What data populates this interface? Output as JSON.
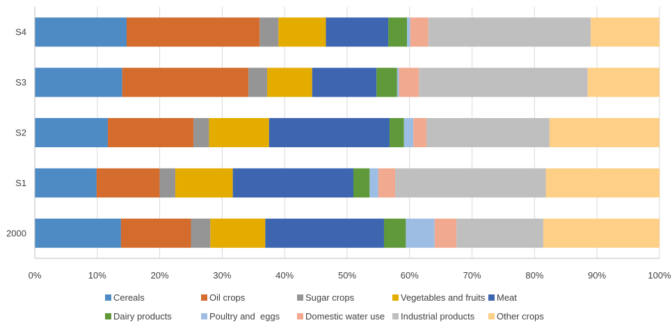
{
  "chart_data": {
    "type": "bar",
    "orientation": "horizontal",
    "stacked": "percent",
    "categories": [
      "S4",
      "S3",
      "S2",
      "S1",
      "2000"
    ],
    "xlim": [
      0,
      100
    ],
    "x_ticks": [
      "0%",
      "10%",
      "20%",
      "30%",
      "40%",
      "50%",
      "60%",
      "70%",
      "80%",
      "90%",
      "100%"
    ],
    "grid": "vertical",
    "legend_position": "bottom",
    "series": [
      {
        "name": "Cereals",
        "color": "#4e8ac4",
        "values": [
          14.7,
          14.0,
          11.7,
          9.9,
          13.8
        ]
      },
      {
        "name": "Oil crops",
        "color": "#d36c2c",
        "values": [
          21.3,
          20.2,
          13.7,
          10.1,
          11.2
        ]
      },
      {
        "name": "Sugar crops",
        "color": "#959595",
        "values": [
          3.0,
          3.0,
          2.5,
          2.5,
          3.1
        ]
      },
      {
        "name": "Vegetables and fruits",
        "color": "#e5ac00",
        "values": [
          7.6,
          7.2,
          9.6,
          9.2,
          8.8
        ]
      },
      {
        "name": "Meat",
        "color": "#3d65b0",
        "values": [
          10.0,
          10.3,
          19.3,
          19.3,
          19.0
        ]
      },
      {
        "name": "Dairy products",
        "color": "#5f993a",
        "values": [
          3.0,
          3.3,
          2.3,
          2.6,
          3.5
        ]
      },
      {
        "name": "Poultry and  eggs",
        "color": "#9ebde3",
        "values": [
          0.5,
          0.3,
          1.5,
          1.4,
          4.6
        ]
      },
      {
        "name": "Domestic water use",
        "color": "#f1a98f",
        "values": [
          2.9,
          3.2,
          2.1,
          2.7,
          3.5
        ]
      },
      {
        "name": "Industrial products",
        "color": "#bfbfbf",
        "values": [
          26.0,
          27.0,
          19.7,
          24.1,
          13.9
        ]
      },
      {
        "name": "Other crops",
        "color": "#fecf87",
        "values": [
          11.0,
          11.5,
          17.6,
          18.2,
          18.6
        ]
      }
    ]
  }
}
